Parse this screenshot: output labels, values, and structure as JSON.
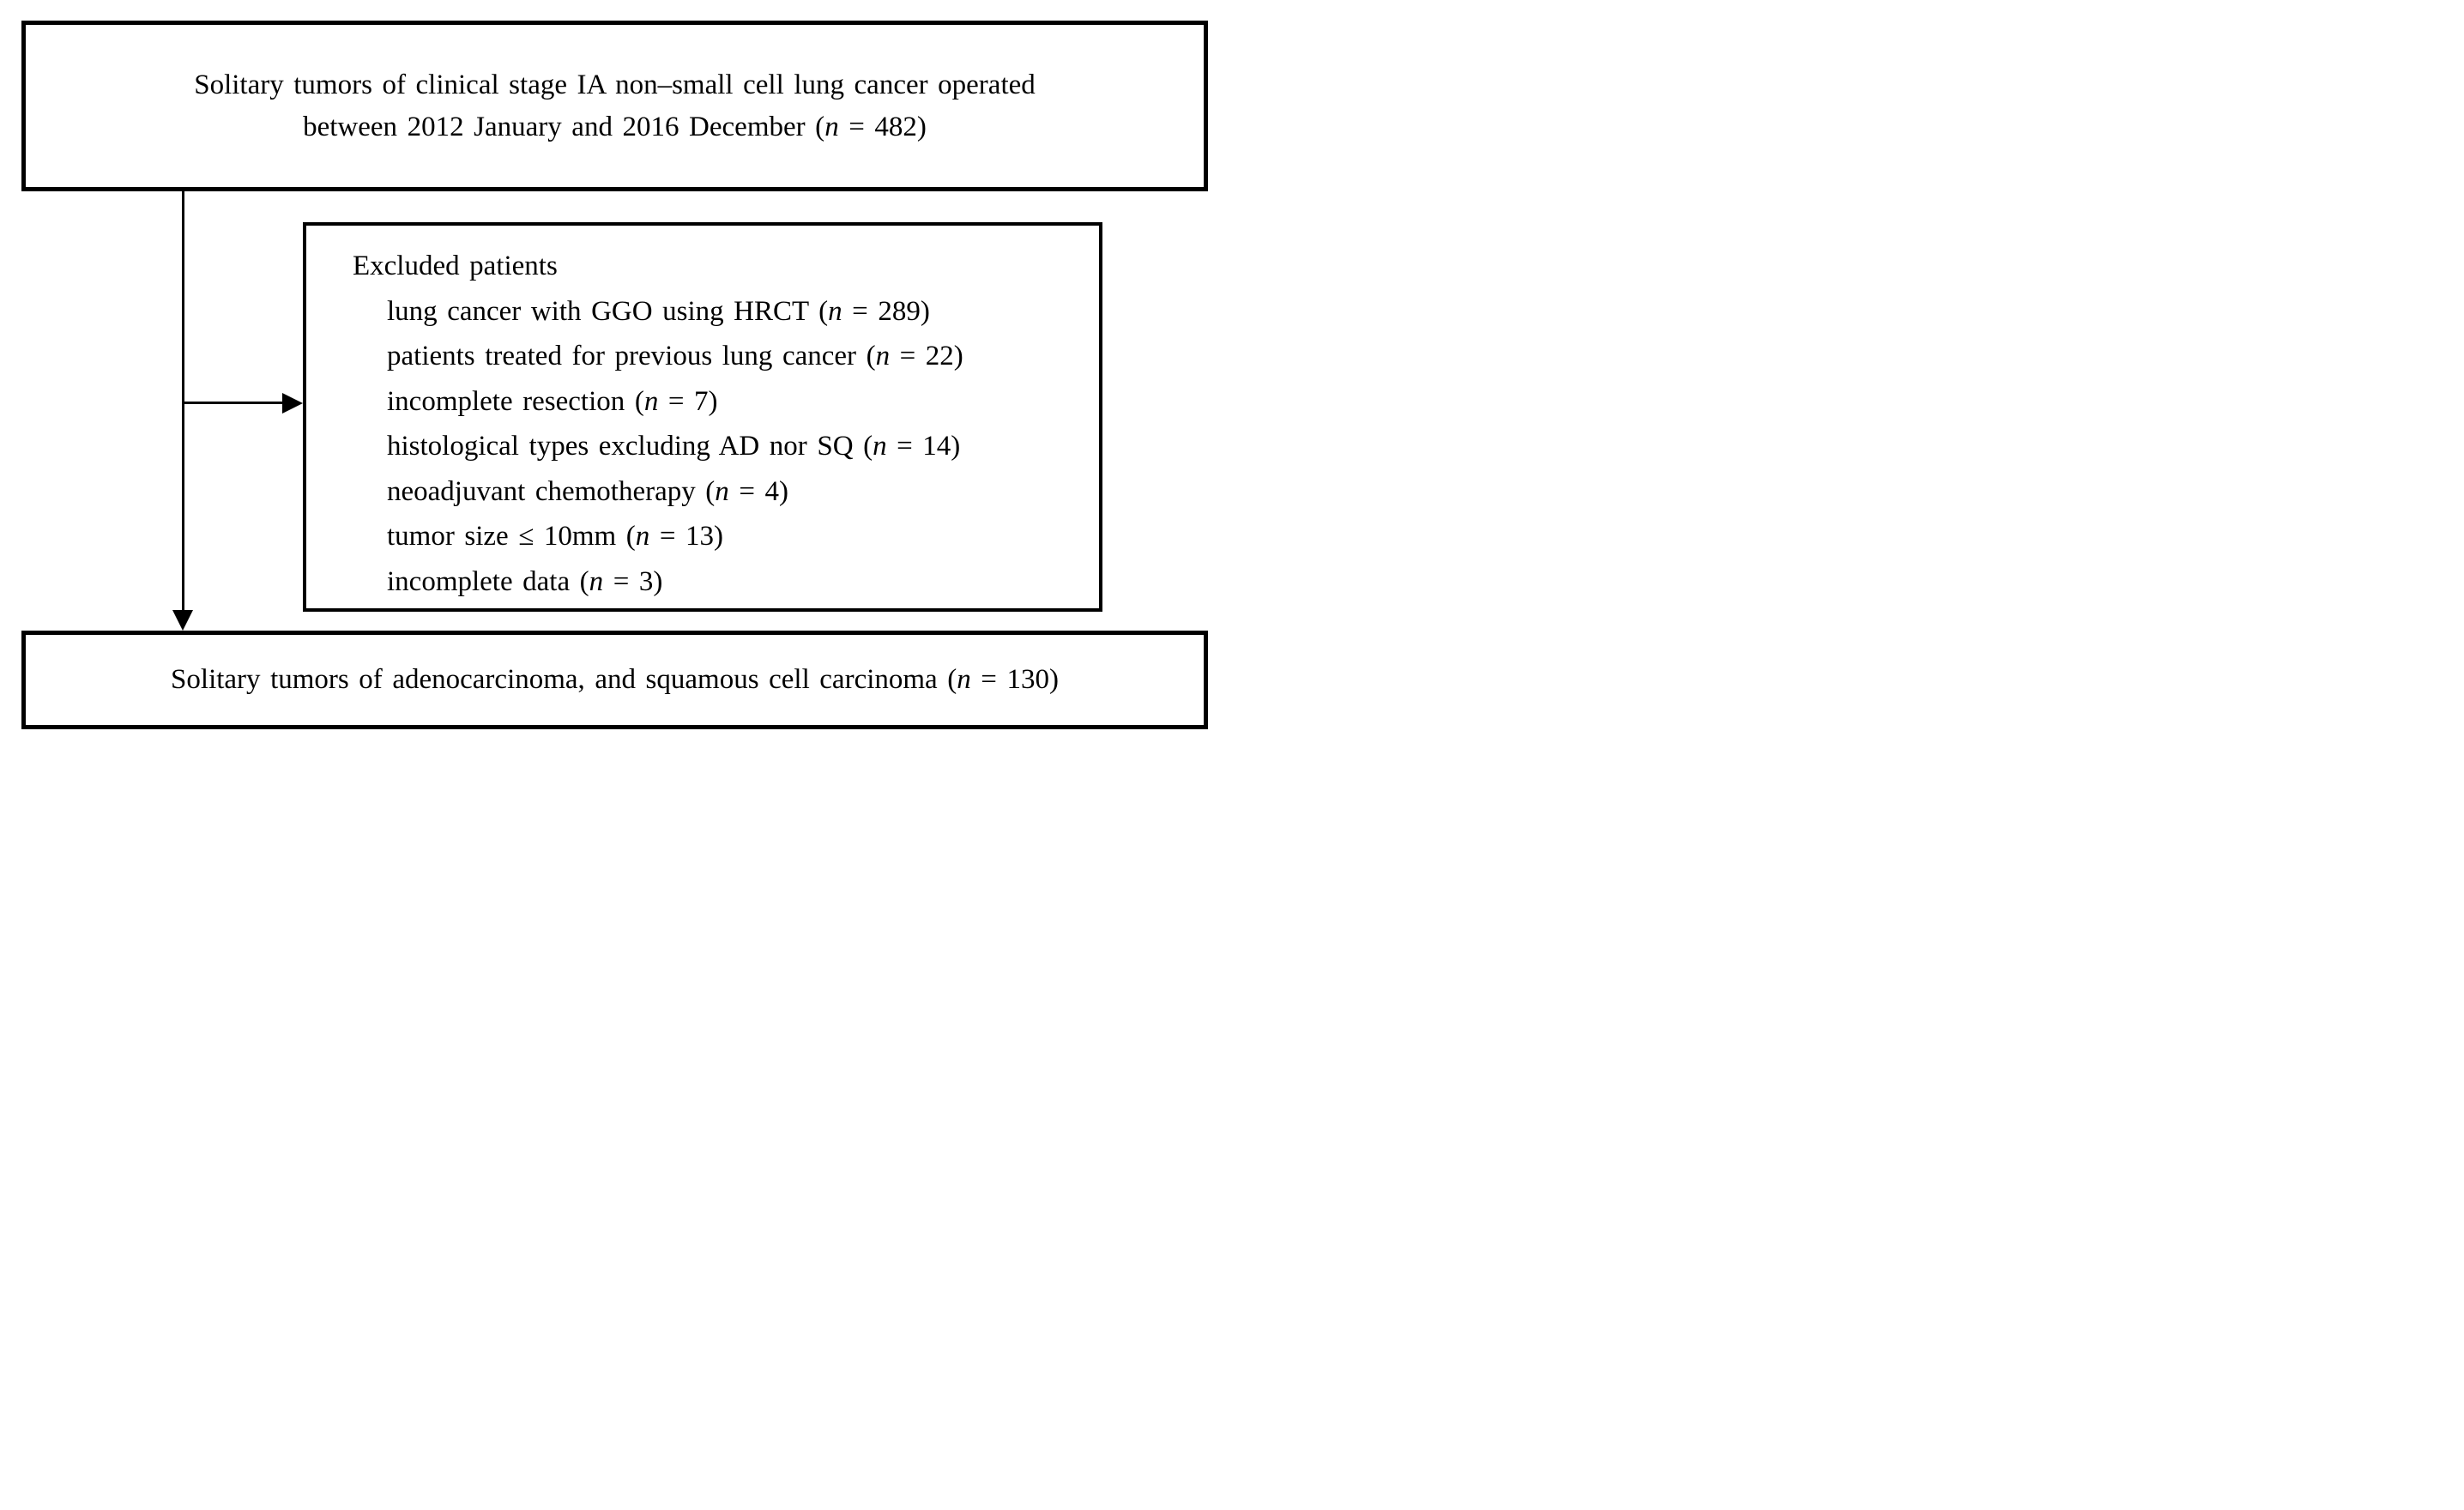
{
  "diagram": {
    "background_color": "#ffffff",
    "ink_color": "#000000",
    "top_box": {
      "n": 482,
      "lines": [
        [
          {
            "text": "Solitary tumors of clinical stage IA non–small cell lung cancer operated"
          }
        ],
        [
          {
            "text": "between 2012 January and 2016 December ("
          },
          {
            "text": "n",
            "italic": true
          },
          {
            "text": " = 482)"
          }
        ]
      ]
    },
    "excluded_box": {
      "heading": "Excluded patients",
      "items": [
        {
          "label": "lung cancer with GGO using HRCT",
          "n": 289,
          "segments": [
            {
              "text": "lung cancer with GGO using HRCT ("
            },
            {
              "text": "n",
              "italic": true
            },
            {
              "text": " = 289)"
            }
          ]
        },
        {
          "label": "patients treated for previous lung cancer",
          "n": 22,
          "segments": [
            {
              "text": "patients treated for previous lung cancer ("
            },
            {
              "text": "n",
              "italic": true
            },
            {
              "text": " = 22)"
            }
          ]
        },
        {
          "label": "incomplete resection",
          "n": 7,
          "segments": [
            {
              "text": "incomplete resection ("
            },
            {
              "text": "n",
              "italic": true
            },
            {
              "text": " = 7)"
            }
          ]
        },
        {
          "label": "histological types excluding AD nor SQ",
          "n": 14,
          "segments": [
            {
              "text": "histological types excluding AD nor SQ ("
            },
            {
              "text": "n",
              "italic": true
            },
            {
              "text": " = 14)"
            }
          ]
        },
        {
          "label": "neoadjuvant chemotherapy",
          "n": 4,
          "segments": [
            {
              "text": "neoadjuvant chemotherapy ("
            },
            {
              "text": "n",
              "italic": true
            },
            {
              "text": " = 4)"
            }
          ]
        },
        {
          "label": "tumor size ≤ 10mm",
          "n": 13,
          "segments": [
            {
              "text": "tumor size ≤ 10mm ("
            },
            {
              "text": "n",
              "italic": true
            },
            {
              "text": " = 13)"
            }
          ]
        },
        {
          "label": "incomplete data",
          "n": 3,
          "segments": [
            {
              "text": "incomplete data ("
            },
            {
              "text": "n",
              "italic": true
            },
            {
              "text": " = 3)"
            }
          ]
        }
      ]
    },
    "bottom_box": {
      "n": 130,
      "segments": [
        {
          "text": "Solitary tumors of adenocarcinoma, and squamous cell carcinoma ("
        },
        {
          "text": "n",
          "italic": true
        },
        {
          "text": " = 130)"
        }
      ]
    }
  }
}
